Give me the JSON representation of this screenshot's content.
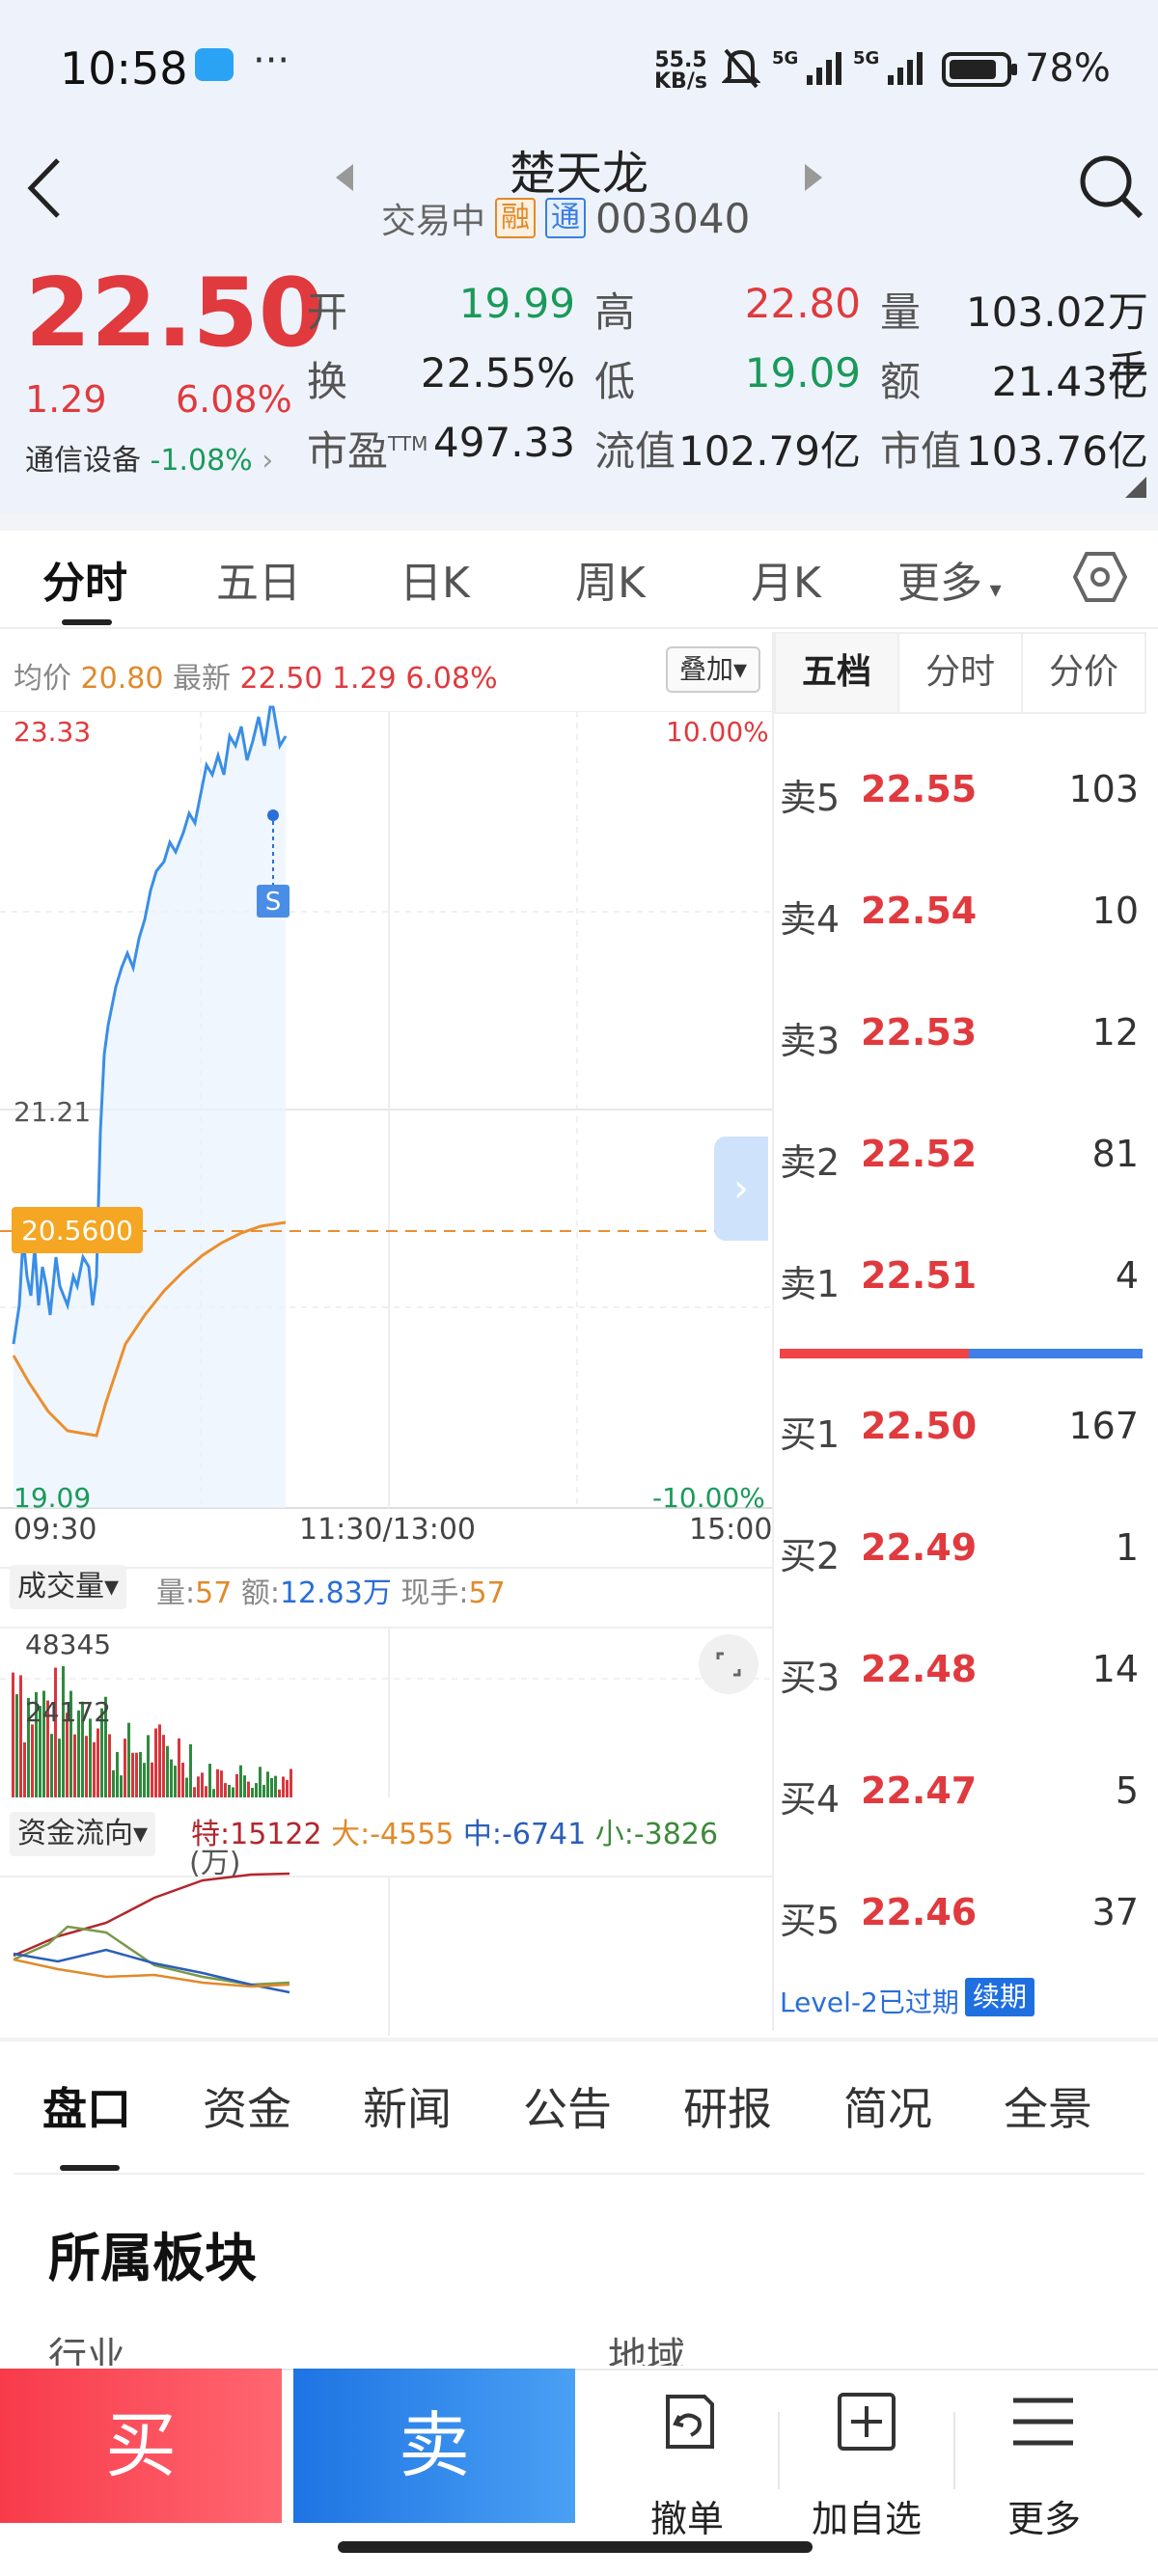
{
  "status": {
    "time": "10:58",
    "net_speed_top": "55.5",
    "net_speed_unit": "KB/s",
    "battery": "78%"
  },
  "header": {
    "title": "楚天龙",
    "trade_status": "交易中",
    "tag_margin": "融",
    "tag_connect": "通",
    "code": "003040"
  },
  "quote": {
    "price": "22.50",
    "change": "1.29",
    "change_pct": "6.08%",
    "sector": "通信设备",
    "sector_change": "-1.08%",
    "open_label": "开",
    "open": "19.99",
    "high_label": "高",
    "high": "22.80",
    "volume_label": "量",
    "volume": "103.02万手",
    "turnover_label": "换",
    "turnover": "22.55%",
    "low_label": "低",
    "low": "19.09",
    "amount_label": "额",
    "amount": "21.43亿",
    "pe_label": "市盈",
    "pe_sup": "TTM",
    "pe": "497.33",
    "float_cap_label": "流值",
    "float_cap": "102.79亿",
    "market_cap_label": "市值",
    "market_cap": "103.76亿"
  },
  "tabs": [
    "分时",
    "五日",
    "日K",
    "周K",
    "月K",
    "更多"
  ],
  "chart_info": {
    "avg_label": "均价",
    "avg": "20.80",
    "latest_label": "最新",
    "latest": "22.50",
    "chg": "1.29",
    "chg_pct": "6.08%",
    "overlay_btn": "叠加",
    "y_top": "23.33",
    "y_mid": "21.21",
    "y_bottom": "19.09",
    "pct_top": "10.00%",
    "pct_bottom": "-10.00%",
    "ref_price": "20.5600",
    "t_start": "09:30",
    "t_mid": "11:30/13:00",
    "t_end": "15:00",
    "marker": "S"
  },
  "volume_panel": {
    "label": "成交量",
    "vol_label": "量:",
    "vol": "57",
    "amt_label": "额:",
    "amt": "12.83万",
    "cur_label": "现手:",
    "cur": "57",
    "y_top": "48345",
    "y_mid": "24172"
  },
  "money_flow": {
    "label": "资金流向",
    "special": "特:15122",
    "large": "大:-4555",
    "mid": "中:-6741",
    "small": "小:-3826",
    "unit": "(万)"
  },
  "orderbook": {
    "tabs": [
      "五档",
      "分时",
      "分价"
    ],
    "asks": [
      {
        "label": "卖5",
        "price": "22.55",
        "qty": "103"
      },
      {
        "label": "卖4",
        "price": "22.54",
        "qty": "10"
      },
      {
        "label": "卖3",
        "price": "22.53",
        "qty": "12"
      },
      {
        "label": "卖2",
        "price": "22.52",
        "qty": "81"
      },
      {
        "label": "卖1",
        "price": "22.51",
        "qty": "4"
      }
    ],
    "bids": [
      {
        "label": "买1",
        "price": "22.50",
        "qty": "167"
      },
      {
        "label": "买2",
        "price": "22.49",
        "qty": "1"
      },
      {
        "label": "买3",
        "price": "22.48",
        "qty": "14"
      },
      {
        "label": "买4",
        "price": "22.47",
        "qty": "5"
      },
      {
        "label": "买5",
        "price": "22.46",
        "qty": "37"
      }
    ],
    "level2_text": "Level-2已过期",
    "renew": "续期"
  },
  "bottom_tabs": [
    "盘口",
    "资金",
    "新闻",
    "公告",
    "研报",
    "简况",
    "全景"
  ],
  "section": {
    "title": "所属板块",
    "industry_label": "行业",
    "region_label": "地域"
  },
  "bottom_bar": {
    "buy": "买",
    "sell": "卖",
    "cancel": "撤单",
    "add_watch": "加自选",
    "more": "更多"
  }
}
